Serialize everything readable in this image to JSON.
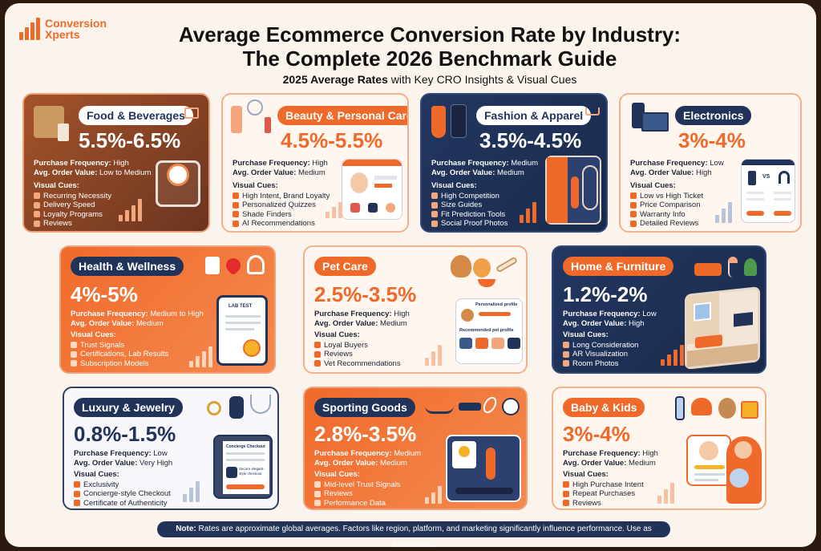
{
  "brand": {
    "line1": "Conversion",
    "line2": "Xperts"
  },
  "header": {
    "title_line1": "Average Ecommerce Conversion Rate by Industry:",
    "title_line2": "The Complete 2026 Benchmark Guide",
    "subtitle_bold": "2025 Average Rates",
    "subtitle_rest": " with Key CRO Insights & Visual Cues"
  },
  "labels": {
    "freq": "Purchase Frequency:",
    "aov": "Avg. Order Value:",
    "cues": "Visual Cues:"
  },
  "cards": [
    {
      "name": "Food & Beverages",
      "rate": "5.5%-6.5%",
      "freq": "High",
      "aov": "Low to Medium",
      "cues": [
        "Recurring Necessity",
        "Delivery Speed",
        "Loyalty Programs",
        "Reviews"
      ]
    },
    {
      "name": "Beauty & Personal Care",
      "rate": "4.5%-5.5%",
      "freq": "High",
      "aov": "Medium",
      "cues": [
        "High Intent, Brand Loyalty",
        "Personalized Quizzes",
        "Shade Finders",
        "AI Recommendations"
      ]
    },
    {
      "name": "Fashion & Apparel",
      "rate": "3.5%-4.5%",
      "freq": "Medium",
      "aov": "Medium",
      "cues": [
        "High Competition",
        "Size Guides",
        "Fit Prediction Tools",
        "Social Proof Photos"
      ]
    },
    {
      "name": "Electronics",
      "rate": "3%-4%",
      "freq": "Low",
      "aov": "High",
      "cues": [
        "Low vs High Ticket",
        "Price Comparison",
        "Warranty Info",
        "Detailed Reviews"
      ]
    },
    {
      "name": "Health & Wellness",
      "rate": "4%-5%",
      "freq": "Medium to High",
      "aov": "Medium",
      "cues": [
        "Trust Signals",
        "Certifications, Lab Results",
        "Subscription Models"
      ]
    },
    {
      "name": "Pet Care",
      "rate": "2.5%-3.5%",
      "freq": "High",
      "aov": "Medium",
      "cues": [
        "Loyal Buyers",
        "Reviews",
        "Vet Recommendations"
      ]
    },
    {
      "name": "Home & Furniture",
      "rate": "1.2%-2%",
      "freq": "Low",
      "aov": "High",
      "cues": [
        "Long Consideration",
        "AR Visualization",
        "Room Photos"
      ]
    },
    {
      "name": "Luxury & Jewelry",
      "rate": "0.8%-1.5%",
      "freq": "Low",
      "aov": "Very High",
      "cues": [
        "Exclusivity",
        "Concierge-style Checkout",
        "Certificate of Authenticity"
      ]
    },
    {
      "name": "Sporting Goods",
      "rate": "2.8%-3.5%",
      "freq": "Medium",
      "aov": "Medium",
      "cues": [
        "Mid-level Trust Signals",
        "Reviews",
        "Performance Data"
      ]
    },
    {
      "name": "Baby & Kids",
      "rate": "3%-4%",
      "freq": "High",
      "aov": "Medium",
      "cues": [
        "High Purchase Intent",
        "Repeat Purchases",
        "Reviews"
      ]
    }
  ],
  "illustrations": {
    "electronics_vs": "VS",
    "health_lab": "LAB TEST",
    "pet_profile": "Personalized profile",
    "pet_recommended": "Recommended pet profile",
    "luxury_checkout": "Concierge Checkout",
    "luxury_secure": "Secure elegant-style checkout"
  },
  "note": {
    "bold": "Note:",
    "text": " Rates are approximate global averages. Factors like region, platform, and marketing significantly influence performance. Use as benchmark."
  }
}
